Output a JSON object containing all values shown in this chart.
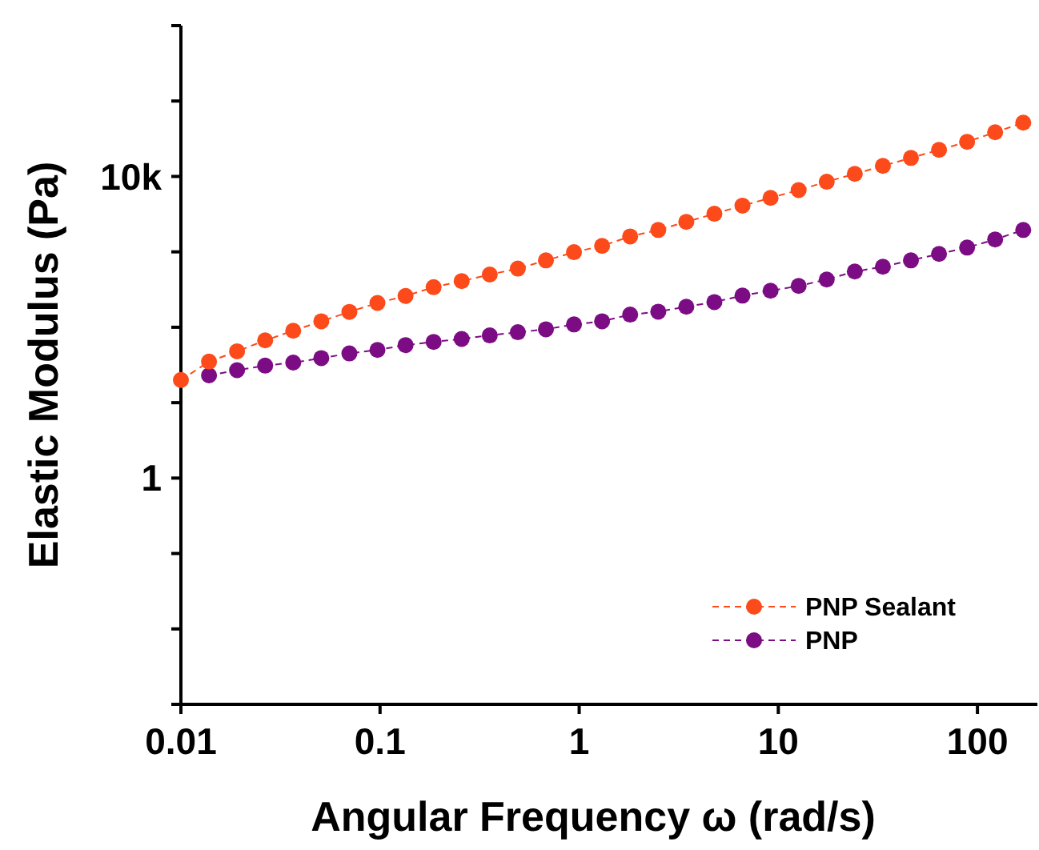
{
  "chart_data": {
    "type": "line",
    "xlabel": "Angular Frequency ω (rad/s)",
    "ylabel": "Elastic Modulus (Pa)",
    "log": "xy",
    "marker": "circle",
    "line_style": "dashed",
    "legend": "bottom right",
    "grid": false,
    "x": [
      0.01,
      0.01384,
      0.01914,
      0.02649,
      0.03664,
      0.0507,
      0.07015,
      0.09705,
      0.1343,
      0.1858,
      0.257,
      0.3556,
      0.492,
      0.6808,
      0.9419,
      1.303,
      1.803,
      2.495,
      3.451,
      4.775,
      6.607,
      9.141,
      12.65,
      17.5,
      24.21,
      33.5,
      46.34,
      64.12,
      88.72,
      122.7,
      169.8
    ],
    "series": [
      {
        "name": "PNP Sealant",
        "color": "#fc4a1a",
        "values": [
          20,
          35,
          48,
          67,
          90,
          120,
          160,
          210,
          260,
          340,
          410,
          500,
          600,
          770,
          990,
          1200,
          1600,
          1950,
          2500,
          3200,
          4100,
          5200,
          6600,
          8500,
          10800,
          13800,
          17600,
          22500,
          28800,
          38500,
          51600
        ]
      },
      {
        "name": "PNP",
        "color": "#7b0c84",
        "values": [
          null,
          23,
          27,
          31,
          34,
          39,
          45,
          50,
          58,
          64,
          70,
          78,
          86,
          94,
          109,
          120,
          147,
          161,
          187,
          216,
          263,
          305,
          353,
          430,
          548,
          635,
          771,
          938,
          1140,
          1460,
          1950
        ]
      }
    ],
    "xlim": [
      0.01,
      200
    ],
    "xticks": [
      0.01,
      0.1,
      1,
      10,
      100
    ],
    "ylim": [
      0.001,
      1000000
    ],
    "yticks": [
      {
        "value": 0.001,
        "label": null
      },
      {
        "value": 0.01,
        "label": null
      },
      {
        "value": 0.1,
        "label": null
      },
      1,
      {
        "value": 10,
        "label": null
      },
      {
        "value": 100,
        "label": null
      },
      {
        "value": 1000,
        "label": null
      },
      {
        "value": 10000,
        "label": "10k"
      },
      {
        "value": 100000,
        "label": null
      },
      {
        "value": 1000000,
        "label": null
      }
    ]
  }
}
